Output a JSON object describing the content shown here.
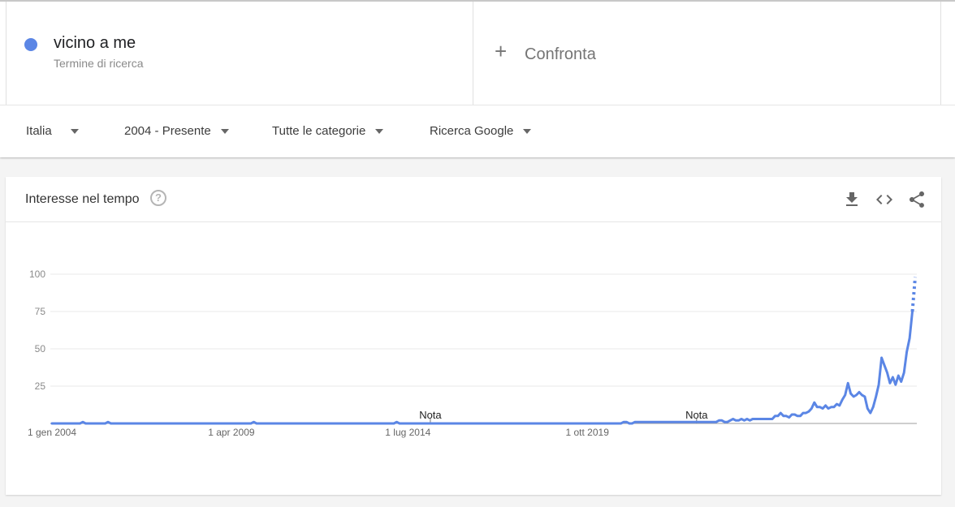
{
  "term": {
    "name": "vicino a me",
    "subtitle": "Termine di ricerca",
    "color": "#5b86e5"
  },
  "compare": {
    "label": "Confronta"
  },
  "filters": [
    {
      "label": "Italia"
    },
    {
      "label": "2004 - Presente"
    },
    {
      "label": "Tutte le categorie"
    },
    {
      "label": "Ricerca Google"
    }
  ],
  "panel": {
    "title": "Interesse nel tempo",
    "icons": {
      "help": "help-circle-icon",
      "download": "download-icon",
      "embed": "code-icon",
      "share": "share-icon"
    }
  },
  "chart_data": {
    "type": "line",
    "title": "",
    "xlabel": "",
    "ylabel": "",
    "ylim": [
      0,
      100
    ],
    "yticks": [
      25,
      50,
      75,
      100
    ],
    "xticks": [
      "1 gen 2004",
      "1 apr 2009",
      "1 lug 2014",
      "1 ott 2019"
    ],
    "notes": [
      "Nota",
      "Nota"
    ],
    "grid": true,
    "series": [
      {
        "color": "#5b86e5",
        "values": [
          0,
          0,
          0,
          0,
          0,
          0,
          0,
          0,
          0,
          0,
          0,
          1,
          0,
          0,
          0,
          0,
          0,
          0,
          0,
          0,
          1,
          0,
          0,
          0,
          0,
          0,
          0,
          0,
          0,
          0,
          0,
          0,
          0,
          0,
          0,
          0,
          0,
          0,
          0,
          0,
          0,
          0,
          0,
          0,
          0,
          0,
          0,
          0,
          0,
          0,
          0,
          0,
          0,
          0,
          0,
          0,
          0,
          0,
          0,
          0,
          0,
          0,
          0,
          0,
          0,
          0,
          0,
          0,
          0,
          0,
          0,
          0,
          1,
          0,
          0,
          0,
          0,
          0,
          0,
          0,
          0,
          0,
          0,
          0,
          0,
          0,
          0,
          0,
          0,
          0,
          0,
          0,
          0,
          0,
          0,
          0,
          0,
          0,
          0,
          0,
          0,
          0,
          0,
          0,
          0,
          0,
          0,
          0,
          0,
          0,
          0,
          0,
          0,
          0,
          0,
          0,
          0,
          0,
          0,
          0,
          0,
          0,
          0,
          1,
          0,
          0,
          0,
          0,
          0,
          0,
          0,
          0,
          0,
          0,
          0,
          0,
          0,
          0,
          0,
          0,
          0,
          0,
          0,
          0,
          0,
          0,
          0,
          0,
          0,
          0,
          0,
          0,
          0,
          0,
          0,
          0,
          0,
          0,
          0,
          0,
          0,
          0,
          0,
          0,
          0,
          0,
          0,
          0,
          0,
          0,
          0,
          0,
          0,
          0,
          0,
          0,
          0,
          0,
          0,
          0,
          0,
          0,
          0,
          0,
          0,
          0,
          0,
          0,
          0,
          0,
          0,
          0,
          0,
          0,
          0,
          0,
          0,
          0,
          0,
          0,
          0,
          0,
          0,
          0,
          1,
          1,
          0,
          0,
          1,
          1,
          1,
          1,
          1,
          1,
          1,
          1,
          1,
          1,
          1,
          1,
          1,
          1,
          1,
          1,
          1,
          1,
          1,
          1,
          1,
          1,
          1,
          1,
          1,
          1,
          1,
          1,
          1,
          1,
          2,
          2,
          1,
          1,
          2,
          3,
          2,
          2,
          3,
          2,
          3,
          2,
          3,
          3,
          3,
          3,
          3,
          3,
          3,
          3,
          5,
          5,
          7,
          5,
          5,
          4,
          6,
          6,
          5,
          5,
          7,
          7,
          8,
          10,
          14,
          11,
          11,
          10,
          12,
          10,
          11,
          11,
          13,
          12,
          16,
          19,
          27,
          20,
          18,
          19,
          21,
          19,
          18,
          10,
          7,
          11,
          18,
          26,
          44,
          39,
          34,
          27,
          31,
          26,
          32,
          28,
          34,
          48,
          57,
          75,
          98
        ]
      }
    ]
  }
}
